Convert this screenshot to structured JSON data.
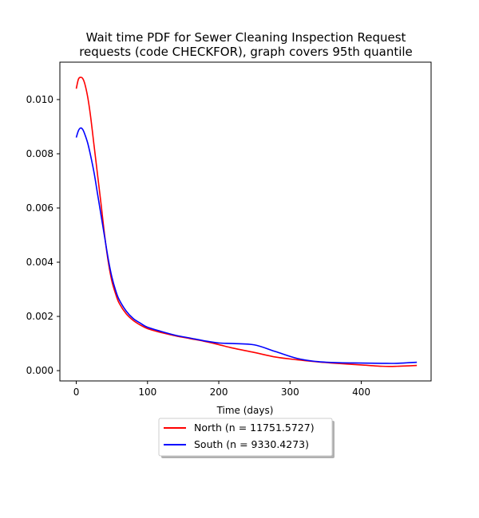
{
  "chart_data": {
    "type": "line",
    "title_line1": "Wait time PDF for Sewer Cleaning Inspection Request",
    "title_line2": "requests (code CHECKFOR), graph covers 95th quantile",
    "xlabel": "Time (days)",
    "ylabel": "",
    "xlim": [
      -23,
      498
    ],
    "ylim": [
      -0.00038,
      0.01138
    ],
    "xticks": [
      0,
      100,
      200,
      300,
      400
    ],
    "yticks": [
      0.0,
      0.002,
      0.004,
      0.006,
      0.008,
      0.01
    ],
    "ytick_labels": [
      "0.000",
      "0.002",
      "0.004",
      "0.006",
      "0.008",
      "0.010"
    ],
    "legend_position": "below-center",
    "grid": false,
    "series": [
      {
        "name": "North (n = 11751.5727)",
        "color": "#ff0000",
        "x": [
          0,
          3,
          6,
          9,
          12,
          16,
          20,
          25,
          30,
          35,
          40,
          45,
          50,
          55,
          60,
          70,
          80,
          90,
          100,
          120,
          140,
          160,
          180,
          200,
          220,
          250,
          280,
          310,
          340,
          370,
          400,
          430,
          450,
          478
        ],
        "y": [
          0.0104,
          0.01075,
          0.01082,
          0.01078,
          0.01058,
          0.0101,
          0.0094,
          0.0083,
          0.0072,
          0.0061,
          0.00495,
          0.004,
          0.0033,
          0.00285,
          0.0025,
          0.0021,
          0.00185,
          0.00168,
          0.00155,
          0.0014,
          0.00128,
          0.00118,
          0.00108,
          0.00096,
          0.00083,
          0.00067,
          0.0005,
          0.0004,
          0.00032,
          0.00026,
          0.00021,
          0.00016,
          0.00016,
          0.00019
        ]
      },
      {
        "name": "South (n = 9330.4273)",
        "color": "#0000ff",
        "x": [
          0,
          3,
          6,
          9,
          12,
          16,
          20,
          25,
          30,
          35,
          40,
          45,
          50,
          55,
          60,
          70,
          80,
          90,
          100,
          120,
          140,
          160,
          180,
          200,
          220,
          250,
          280,
          310,
          340,
          370,
          400,
          430,
          450,
          478
        ],
        "y": [
          0.0086,
          0.00885,
          0.00895,
          0.0089,
          0.00872,
          0.0084,
          0.00795,
          0.0073,
          0.0065,
          0.0057,
          0.0049,
          0.0041,
          0.00345,
          0.00298,
          0.00263,
          0.0022,
          0.00192,
          0.00175,
          0.0016,
          0.00144,
          0.0013,
          0.0012,
          0.0011,
          0.00102,
          0.001,
          0.00095,
          0.0007,
          0.00045,
          0.00033,
          0.00029,
          0.00028,
          0.00027,
          0.00027,
          0.00031
        ]
      }
    ]
  }
}
